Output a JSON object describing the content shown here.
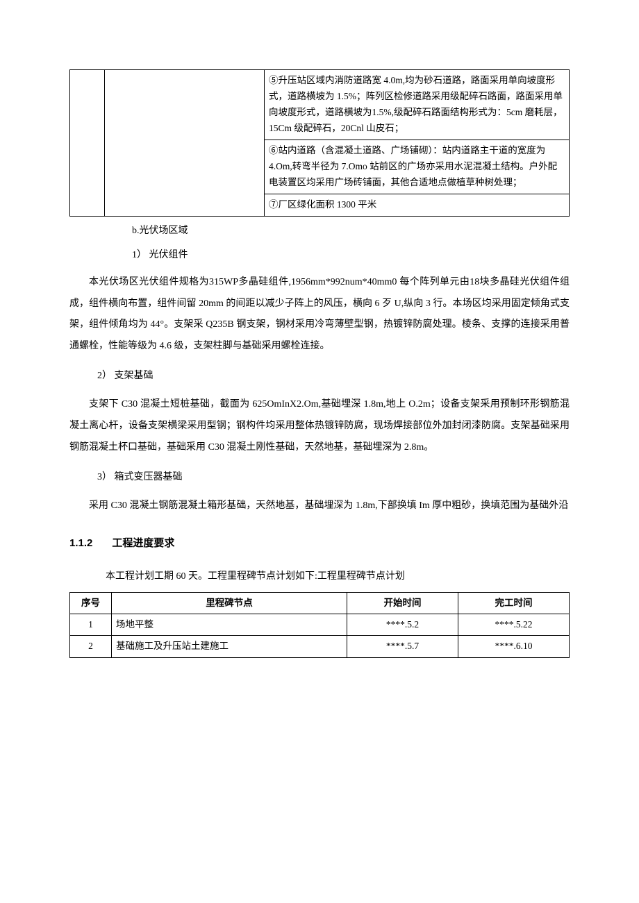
{
  "topTable": {
    "row5": "⑤升压站区域内消防道路宽 4.0m,均为砂石道路，路面采用单向坡度形式，道路横坡为 1.5%；阵列区检修道路采用级配碎石路面，路面采用单向坡度形式，道路横坡为1.5%,级配碎石路面结构形式为：5cm 磨耗层，15Cm 级配碎石，20Cnl 山皮石；",
    "row6": "⑥站内道路（含混凝土道路、广场铺砌）：站内道路主干道的宽度为 4.Om,转弯半径为 7.Omo 站前区的广场亦采用水泥混凝土结构。户外配电装置区均采用广场砖铺面，其他合适地点做植草种树处理；",
    "row7": "⑦厂区绿化面积 1300 平米"
  },
  "sectionB": {
    "label": "b.光伏场区域",
    "item1": {
      "heading": "1） 光伏组件",
      "text": "本光伏场区光伏组件规格为315WP多晶硅组件,1956mm*992num*40mm0 每个阵列单元由18块多晶硅光伏组件组成，组件横向布置，组件间留 20mm 的间距以减少子阵上的风压，横向 6 歹 U,纵向 3 行。本场区均采用固定倾角式支架，组件倾角均为 44°。支架采 Q235B 钢支架，钢材采用冷弯薄壁型钢，热镀锌防腐处理。棱条、支撑的连接采用普通螺栓，性能等级为 4.6 级，支架柱脚与基础采用螺栓连接。"
    },
    "item2": {
      "heading": "2） 支架基础",
      "text": "支架下 C30 混凝土短桩基础，截面为 625OmInX2.Om,基础埋深 1.8m,地上 O.2m；设备支架采用预制环形钢筋混凝土离心杆，设备支架横梁采用型钢；钢构件均采用整体热镀锌防腐，现场焊接部位外加封闭漆防腐。支架基础采用钢筋混凝土杯口基础，基础采用 C30 混凝土刚性基础，天然地基，基础埋深为 2.8m。"
    },
    "item3": {
      "heading": "3） 箱式变压器基础",
      "text": "采用 C30 混凝土钢筋混凝土箱形基础，天然地基，基础埋深为 1.8m,下部换填 Im 厚中粗砂，换填范围为基础外沿"
    }
  },
  "section112": {
    "number": "1.1.2",
    "title": "工程进度要求",
    "intro": "本工程计划工期 60 天。工程里程碑节点计划如下:工程里程碑节点计划",
    "headers": {
      "seq": "序号",
      "milestone": "里程碑节点",
      "start": "开始时间",
      "end": "完工时间"
    },
    "rows": [
      {
        "seq": "1",
        "milestone": "场地平整",
        "start": "****.5.2",
        "end": "****.5.22"
      },
      {
        "seq": "2",
        "milestone": "基础施工及升压站土建施工",
        "start": "****.5.7",
        "end": "****.6.10"
      }
    ]
  }
}
